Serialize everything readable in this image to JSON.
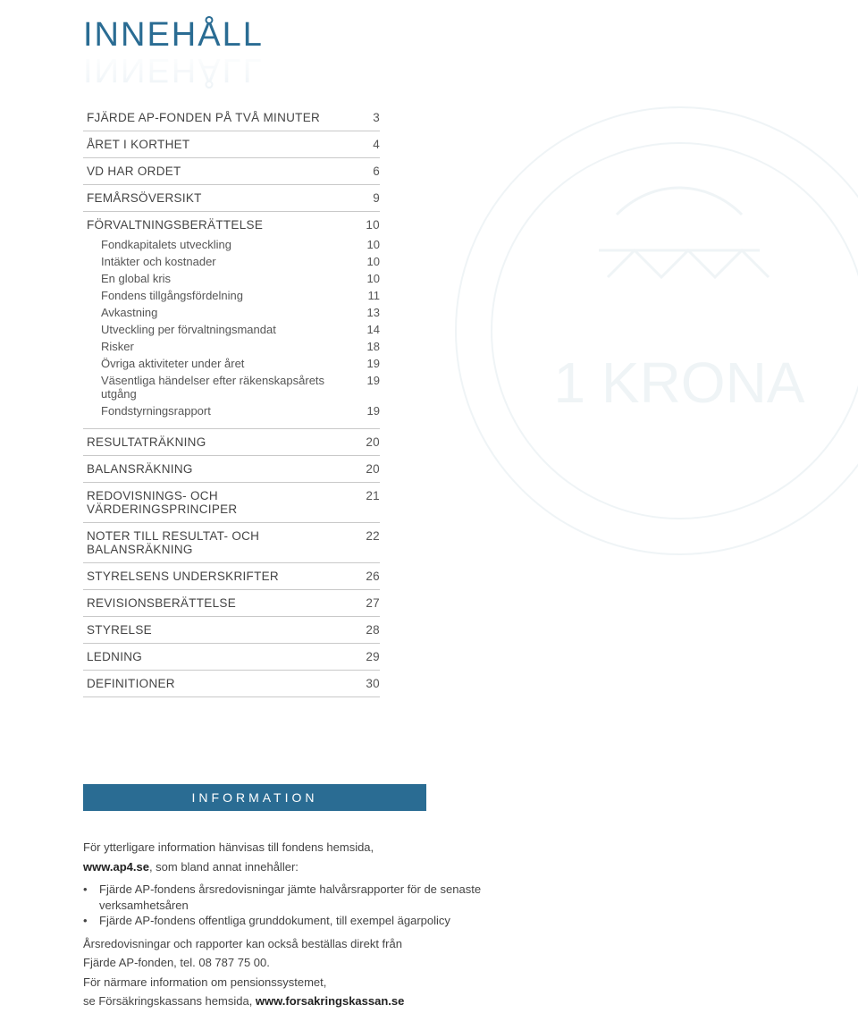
{
  "title": "INNEHÅLL",
  "toc": [
    {
      "label": "FJÄRDE AP-FONDEN PÅ TVÅ MINUTER",
      "page": "3",
      "sub": []
    },
    {
      "label": "ÅRET I KORTHET",
      "page": "4",
      "sub": []
    },
    {
      "label": "VD HAR ORDET",
      "page": "6",
      "sub": []
    },
    {
      "label": "FEMÅRSÖVERSIKT",
      "page": "9",
      "sub": []
    },
    {
      "label": "FÖRVALTNINGSBERÄTTELSE",
      "page": "10",
      "sub": [
        {
          "label": "Fondkapitalets utveckling",
          "page": "10"
        },
        {
          "label": "Intäkter och kostnader",
          "page": "10"
        },
        {
          "label": "En global kris",
          "page": "10"
        },
        {
          "label": "Fondens tillgångsfördelning",
          "page": "11"
        },
        {
          "label": "Avkastning",
          "page": "13"
        },
        {
          "label": "Utveckling per förvaltningsmandat",
          "page": "14"
        },
        {
          "label": "Risker",
          "page": "18"
        },
        {
          "label": "Övriga aktiviteter under året",
          "page": "19"
        },
        {
          "label": "Väsentliga händelser efter räkenskapsårets utgång",
          "page": "19"
        },
        {
          "label": "Fondstyrningsrapport",
          "page": "19"
        }
      ]
    },
    {
      "label": "RESULTATRÄKNING",
      "page": "20",
      "sub": []
    },
    {
      "label": "BALANSRÄKNING",
      "page": "20",
      "sub": []
    },
    {
      "label": "REDOVISNINGS- OCH VÄRDERINGSPRINCIPER",
      "page": "21",
      "sub": []
    },
    {
      "label": "NOTER TILL RESULTAT- OCH BALANSRÄKNING",
      "page": "22",
      "sub": []
    },
    {
      "label": "STYRELSENS UNDERSKRIFTER",
      "page": "26",
      "sub": []
    },
    {
      "label": "REVISIONSBERÄTTELSE",
      "page": "27",
      "sub": []
    },
    {
      "label": "STYRELSE",
      "page": "28",
      "sub": []
    },
    {
      "label": "LEDNING",
      "page": "29",
      "sub": []
    },
    {
      "label": "DEFINITIONER",
      "page": "30",
      "sub": []
    }
  ],
  "info": {
    "heading": "INFORMATION",
    "intro1": "För ytterligare information hänvisas till fondens hemsida,",
    "intro2a": "www.ap4.se",
    "intro2b": ", som bland annat innehåller:",
    "bullets": [
      "Fjärde AP-fondens årsredovisningar jämte halvårsrapporter för de senaste verksamhetsåren",
      "Fjärde AP-fondens offentliga grunddokument, till exempel ägarpolicy"
    ],
    "tail1": "Årsredovisningar och rapporter kan också beställas direkt från",
    "tail2": "Fjärde AP-fonden, tel. 08 787 75 00.",
    "tail3": "För närmare information om pensionssystemet,",
    "tail4a": "se Försäkringskassans hemsida, ",
    "tail4b": "www.forsakringskassan.se"
  },
  "colors": {
    "accent": "#2a6c93",
    "text": "#444444",
    "border": "#c9c9c9",
    "bg": "#ffffff"
  }
}
